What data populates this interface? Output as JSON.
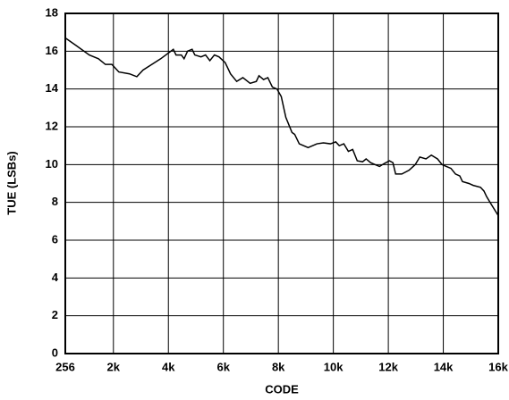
{
  "chart_data": {
    "type": "line",
    "xlabel": "CODE",
    "ylabel": "TUE (LSBs)",
    "x": [
      256,
      660,
      1150,
      1490,
      1750,
      1990,
      2250,
      2650,
      2920,
      3150,
      3480,
      3810,
      4280,
      4380,
      4580,
      4680,
      4810,
      4980,
      5080,
      5310,
      5480,
      5640,
      5810,
      5980,
      6210,
      6410,
      6640,
      6870,
      7140,
      7370,
      7470,
      7640,
      7800,
      7970,
      8140,
      8300,
      8470,
      8700,
      8800,
      8970,
      9300,
      9630,
      9870,
      10130,
      10330,
      10460,
      10630,
      10800,
      10960,
      11130,
      11330,
      11460,
      11630,
      11790,
      11960,
      12130,
      12330,
      12460,
      12560,
      12790,
      13060,
      13290,
      13460,
      13690,
      13890,
      14120,
      14290,
      14450,
      14620,
      14790,
      14950,
      15050,
      15290,
      15450,
      15720,
      15850,
      15950,
      16120,
      16383
    ],
    "series": [
      {
        "name": "TUE",
        "color": "#000000",
        "values": [
          16.7,
          16.3,
          15.8,
          15.6,
          15.3,
          15.3,
          14.9,
          14.8,
          14.65,
          15.0,
          15.3,
          15.6,
          16.1,
          15.8,
          15.8,
          15.6,
          16.0,
          16.1,
          15.8,
          15.7,
          15.8,
          15.5,
          15.8,
          15.7,
          15.4,
          14.8,
          14.4,
          14.6,
          14.3,
          14.4,
          14.7,
          14.5,
          14.6,
          14.1,
          14.0,
          13.6,
          12.5,
          11.7,
          11.6,
          11.1,
          10.9,
          11.1,
          11.15,
          11.1,
          11.2,
          11.0,
          11.1,
          10.7,
          10.8,
          10.2,
          10.15,
          10.3,
          10.1,
          10.0,
          9.9,
          10.05,
          10.2,
          10.1,
          9.5,
          9.5,
          9.7,
          10.0,
          10.4,
          10.3,
          10.5,
          10.3,
          10.0,
          9.9,
          9.8,
          9.5,
          9.4,
          9.1,
          9.0,
          8.9,
          8.8,
          8.6,
          8.3,
          7.9,
          7.3
        ]
      }
    ],
    "xlim": [
      256,
      16383
    ],
    "xticks": [
      {
        "value": 256,
        "label": "256"
      },
      {
        "value": 2048,
        "label": "2k"
      },
      {
        "value": 4096,
        "label": "4k"
      },
      {
        "value": 6144,
        "label": "6k"
      },
      {
        "value": 8192,
        "label": "8k"
      },
      {
        "value": 10240,
        "label": "10k"
      },
      {
        "value": 12288,
        "label": "12k"
      },
      {
        "value": 14336,
        "label": "14k"
      },
      {
        "value": 16383,
        "label": "16k"
      }
    ],
    "ylim": [
      0,
      18
    ],
    "yticks": [
      0,
      2,
      4,
      6,
      8,
      10,
      12,
      14,
      16,
      18
    ],
    "grid": true
  }
}
